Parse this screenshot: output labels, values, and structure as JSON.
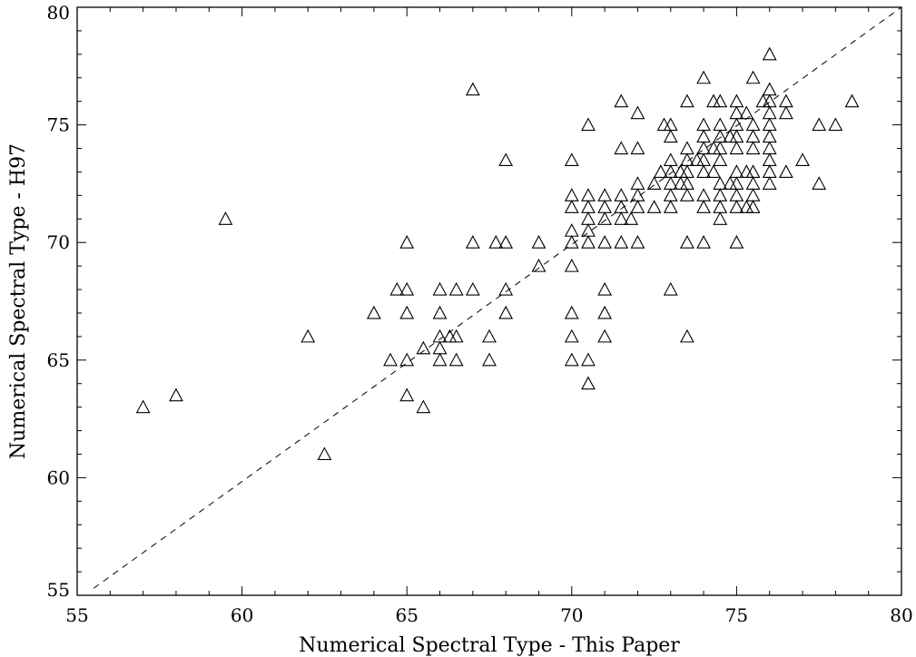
{
  "chart_data": {
    "type": "scatter",
    "title": "",
    "xlabel": "Numerical Spectral Type - This Paper",
    "ylabel": "Numerical Spectral Type - H97",
    "xlim": [
      55,
      80
    ],
    "ylim": [
      55,
      80
    ],
    "x_ticks": [
      55,
      60,
      65,
      70,
      75,
      80
    ],
    "y_ticks": [
      55,
      60,
      65,
      70,
      75,
      80
    ],
    "x_tick_labels": [
      "55",
      "60",
      "65",
      "70",
      "75",
      "80"
    ],
    "y_tick_labels": [
      "55",
      "60",
      "65",
      "70",
      "75",
      "80"
    ],
    "marker": "open-triangle",
    "grid": false,
    "reference_line": {
      "style": "dashed",
      "relation": "y = x",
      "from": [
        55.5,
        55.3
      ],
      "to": [
        80,
        80
      ]
    },
    "series": [
      {
        "points": [
          [
            57.0,
            63.0
          ],
          [
            58.0,
            63.5
          ],
          [
            59.5,
            71.0
          ],
          [
            62.0,
            66.0
          ],
          [
            62.5,
            61.0
          ],
          [
            64.0,
            67.0
          ],
          [
            64.5,
            65.0
          ],
          [
            64.7,
            68.0
          ],
          [
            65.0,
            70.0
          ],
          [
            65.0,
            68.0
          ],
          [
            65.0,
            67.0
          ],
          [
            65.0,
            65.0
          ],
          [
            65.0,
            63.5
          ],
          [
            65.5,
            65.5
          ],
          [
            65.5,
            63.0
          ],
          [
            66.0,
            68.0
          ],
          [
            66.0,
            67.0
          ],
          [
            66.0,
            66.0
          ],
          [
            66.0,
            65.5
          ],
          [
            66.0,
            65.0
          ],
          [
            66.3,
            66.0
          ],
          [
            66.5,
            68.0
          ],
          [
            66.5,
            66.0
          ],
          [
            66.5,
            65.0
          ],
          [
            67.0,
            76.5
          ],
          [
            67.0,
            70.0
          ],
          [
            67.0,
            68.0
          ],
          [
            67.5,
            66.0
          ],
          [
            67.5,
            65.0
          ],
          [
            67.7,
            70.0
          ],
          [
            68.0,
            73.5
          ],
          [
            68.0,
            70.0
          ],
          [
            68.0,
            68.0
          ],
          [
            68.0,
            67.0
          ],
          [
            69.0,
            70.0
          ],
          [
            69.0,
            69.0
          ],
          [
            70.0,
            73.5
          ],
          [
            70.0,
            72.0
          ],
          [
            70.0,
            71.5
          ],
          [
            70.0,
            70.5
          ],
          [
            70.0,
            70.0
          ],
          [
            70.0,
            69.0
          ],
          [
            70.0,
            67.0
          ],
          [
            70.0,
            66.0
          ],
          [
            70.0,
            65.0
          ],
          [
            70.5,
            75.0
          ],
          [
            70.5,
            72.0
          ],
          [
            70.5,
            71.5
          ],
          [
            70.5,
            71.0
          ],
          [
            70.5,
            70.5
          ],
          [
            70.5,
            70.0
          ],
          [
            70.5,
            65.0
          ],
          [
            70.5,
            64.0
          ],
          [
            71.0,
            72.0
          ],
          [
            71.0,
            71.5
          ],
          [
            71.0,
            71.0
          ],
          [
            71.0,
            70.0
          ],
          [
            71.0,
            68.0
          ],
          [
            71.0,
            67.0
          ],
          [
            71.0,
            66.0
          ],
          [
            71.5,
            76.0
          ],
          [
            71.5,
            74.0
          ],
          [
            71.5,
            72.0
          ],
          [
            71.5,
            71.5
          ],
          [
            71.5,
            71.0
          ],
          [
            71.5,
            70.0
          ],
          [
            71.8,
            71.0
          ],
          [
            72.0,
            75.5
          ],
          [
            72.0,
            74.0
          ],
          [
            72.0,
            72.5
          ],
          [
            72.0,
            72.0
          ],
          [
            72.0,
            71.5
          ],
          [
            72.0,
            70.0
          ],
          [
            72.5,
            72.5
          ],
          [
            72.5,
            71.5
          ],
          [
            72.7,
            73.0
          ],
          [
            72.8,
            75.0
          ],
          [
            73.0,
            75.0
          ],
          [
            73.0,
            74.5
          ],
          [
            73.0,
            73.5
          ],
          [
            73.0,
            73.0
          ],
          [
            73.0,
            72.5
          ],
          [
            73.0,
            72.0
          ],
          [
            73.0,
            71.5
          ],
          [
            73.0,
            68.0
          ],
          [
            73.3,
            73.0
          ],
          [
            73.3,
            72.5
          ],
          [
            73.5,
            76.0
          ],
          [
            73.5,
            74.0
          ],
          [
            73.5,
            73.5
          ],
          [
            73.5,
            73.0
          ],
          [
            73.5,
            72.5
          ],
          [
            73.5,
            72.0
          ],
          [
            73.5,
            70.0
          ],
          [
            73.5,
            66.0
          ],
          [
            73.8,
            73.5
          ],
          [
            74.0,
            77.0
          ],
          [
            74.0,
            75.0
          ],
          [
            74.0,
            74.5
          ],
          [
            74.0,
            74.0
          ],
          [
            74.0,
            73.5
          ],
          [
            74.0,
            73.0
          ],
          [
            74.0,
            72.0
          ],
          [
            74.0,
            71.5
          ],
          [
            74.0,
            70.0
          ],
          [
            74.3,
            76.0
          ],
          [
            74.3,
            74.0
          ],
          [
            74.3,
            73.0
          ],
          [
            74.5,
            76.0
          ],
          [
            74.5,
            75.0
          ],
          [
            74.5,
            74.5
          ],
          [
            74.5,
            74.0
          ],
          [
            74.5,
            73.5
          ],
          [
            74.5,
            72.5
          ],
          [
            74.5,
            72.0
          ],
          [
            74.5,
            71.5
          ],
          [
            74.5,
            71.0
          ],
          [
            74.8,
            74.5
          ],
          [
            74.8,
            72.5
          ],
          [
            75.0,
            76.0
          ],
          [
            75.0,
            75.5
          ],
          [
            75.0,
            75.0
          ],
          [
            75.0,
            74.5
          ],
          [
            75.0,
            74.0
          ],
          [
            75.0,
            73.0
          ],
          [
            75.0,
            72.5
          ],
          [
            75.0,
            72.0
          ],
          [
            75.0,
            71.5
          ],
          [
            75.0,
            70.0
          ],
          [
            75.3,
            75.5
          ],
          [
            75.3,
            73.0
          ],
          [
            75.3,
            71.5
          ],
          [
            75.5,
            77.0
          ],
          [
            75.5,
            75.0
          ],
          [
            75.5,
            74.5
          ],
          [
            75.5,
            74.0
          ],
          [
            75.5,
            73.0
          ],
          [
            75.5,
            72.5
          ],
          [
            75.5,
            72.0
          ],
          [
            75.5,
            71.5
          ],
          [
            75.8,
            76.0
          ],
          [
            76.0,
            78.0
          ],
          [
            76.0,
            76.5
          ],
          [
            76.0,
            76.0
          ],
          [
            76.0,
            75.5
          ],
          [
            76.0,
            75.0
          ],
          [
            76.0,
            74.5
          ],
          [
            76.0,
            74.0
          ],
          [
            76.0,
            73.5
          ],
          [
            76.0,
            73.0
          ],
          [
            76.0,
            72.5
          ],
          [
            76.5,
            76.0
          ],
          [
            76.5,
            75.5
          ],
          [
            76.5,
            73.0
          ],
          [
            77.0,
            73.5
          ],
          [
            77.5,
            75.0
          ],
          [
            77.5,
            72.5
          ],
          [
            78.0,
            75.0
          ],
          [
            78.5,
            76.0
          ]
        ]
      }
    ]
  }
}
